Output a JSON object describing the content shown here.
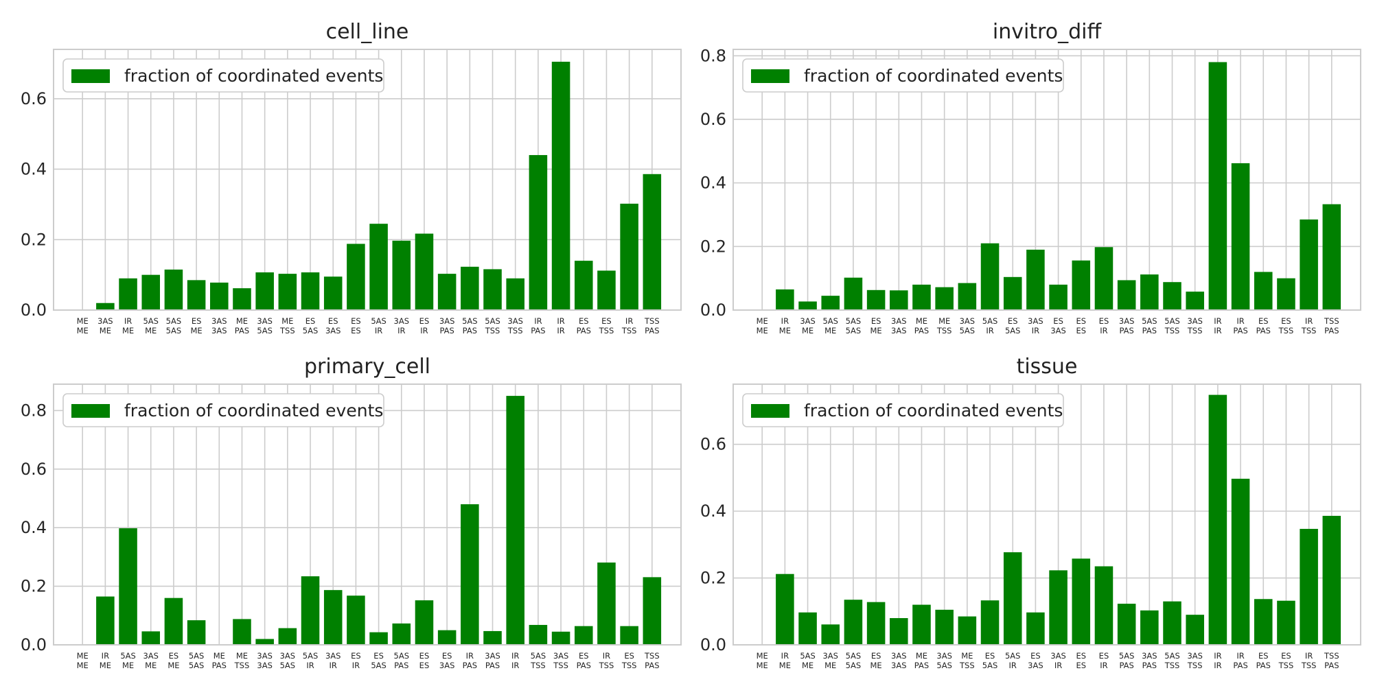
{
  "chart_data": [
    {
      "type": "bar",
      "title": "cell_line",
      "legend": "fraction of coordinated events",
      "legend_loc": "upper-left",
      "color": "#008000",
      "grid": true,
      "ylim": [
        0,
        0.74
      ],
      "yticks": [
        "0.0",
        "0.2",
        "0.4",
        "0.6"
      ],
      "categories": [
        "ME\nME",
        "3AS\nME",
        "IR\nME",
        "5AS\nME",
        "5AS\n5AS",
        "ES\nME",
        "3AS\n3AS",
        "ME\nPAS",
        "3AS\n5AS",
        "ME\nTSS",
        "ES\n5AS",
        "ES\n3AS",
        "ES\nES",
        "5AS\nIR",
        "3AS\nIR",
        "ES\nIR",
        "3AS\nPAS",
        "5AS\nPAS",
        "5AS\nTSS",
        "3AS\nTSS",
        "IR\nPAS",
        "IR\nIR",
        "ES\nPAS",
        "ES\nTSS",
        "IR\nTSS",
        "TSS\nPAS"
      ],
      "values": [
        0.0,
        0.02,
        0.09,
        0.1,
        0.115,
        0.085,
        0.078,
        0.062,
        0.107,
        0.103,
        0.107,
        0.095,
        0.188,
        0.245,
        0.197,
        0.217,
        0.103,
        0.123,
        0.116,
        0.09,
        0.44,
        0.705,
        0.14,
        0.112,
        0.302,
        0.386
      ]
    },
    {
      "type": "bar",
      "title": "invitro_diff",
      "legend": "fraction of coordinated events",
      "legend_loc": "upper-left",
      "color": "#008000",
      "grid": true,
      "ylim": [
        0,
        0.82
      ],
      "yticks": [
        "0.0",
        "0.2",
        "0.4",
        "0.6",
        "0.8"
      ],
      "categories": [
        "ME\nME",
        "IR\nME",
        "3AS\nME",
        "5AS\nME",
        "5AS\n5AS",
        "ES\nME",
        "3AS\n3AS",
        "ME\nPAS",
        "ME\nTSS",
        "3AS\n5AS",
        "5AS\nIR",
        "ES\n5AS",
        "3AS\nIR",
        "ES\n3AS",
        "ES\nES",
        "ES\nIR",
        "3AS\nPAS",
        "5AS\nPAS",
        "5AS\nTSS",
        "3AS\nTSS",
        "IR\nIR",
        "IR\nPAS",
        "ES\nPAS",
        "ES\nTSS",
        "IR\nTSS",
        "TSS\nPAS"
      ],
      "values": [
        0.0,
        0.065,
        0.027,
        0.045,
        0.102,
        0.063,
        0.062,
        0.08,
        0.072,
        0.085,
        0.21,
        0.104,
        0.19,
        0.08,
        0.156,
        0.198,
        0.094,
        0.112,
        0.088,
        0.058,
        0.78,
        0.462,
        0.12,
        0.1,
        0.285,
        0.333
      ]
    },
    {
      "type": "bar",
      "title": "primary_cell",
      "legend": "fraction of coordinated events",
      "legend_loc": "upper-left",
      "color": "#008000",
      "grid": true,
      "ylim": [
        0,
        0.89
      ],
      "yticks": [
        "0.0",
        "0.2",
        "0.4",
        "0.6",
        "0.8"
      ],
      "categories": [
        "ME\nME",
        "IR\nME",
        "5AS\nME",
        "3AS\nME",
        "ES\nME",
        "5AS\n5AS",
        "ME\nPAS",
        "ME\nTSS",
        "3AS\n3AS",
        "3AS\n5AS",
        "5AS\nIR",
        "3AS\nIR",
        "ES\nIR",
        "ES\n5AS",
        "5AS\nPAS",
        "ES\nES",
        "ES\n3AS",
        "IR\nPAS",
        "3AS\nPAS",
        "IR\nIR",
        "5AS\nTSS",
        "3AS\nTSS",
        "ES\nPAS",
        "IR\nTSS",
        "ES\nTSS",
        "TSS\nPAS"
      ],
      "values": [
        0.0,
        0.165,
        0.398,
        0.046,
        0.16,
        0.084,
        0.0,
        0.088,
        0.02,
        0.057,
        0.234,
        0.187,
        0.168,
        0.043,
        0.073,
        0.152,
        0.05,
        0.48,
        0.047,
        0.85,
        0.068,
        0.045,
        0.064,
        0.281,
        0.064,
        0.231
      ]
    },
    {
      "type": "bar",
      "title": "tissue",
      "legend": "fraction of coordinated events",
      "legend_loc": "upper-left",
      "color": "#008000",
      "grid": true,
      "ylim": [
        0,
        0.78
      ],
      "yticks": [
        "0.0",
        "0.2",
        "0.4",
        "0.6"
      ],
      "categories": [
        "ME\nME",
        "IR\nME",
        "5AS\nME",
        "3AS\nME",
        "5AS\n5AS",
        "ES\nME",
        "3AS\n3AS",
        "ME\nPAS",
        "3AS\n5AS",
        "ME\nTSS",
        "ES\n5AS",
        "5AS\nIR",
        "ES\n3AS",
        "3AS\nIR",
        "ES\nES",
        "ES\nIR",
        "5AS\nPAS",
        "3AS\nPAS",
        "5AS\nTSS",
        "3AS\nTSS",
        "IR\nIR",
        "IR\nPAS",
        "ES\nPAS",
        "ES\nTSS",
        "IR\nTSS",
        "TSS\nPAS"
      ],
      "values": [
        0.0,
        0.212,
        0.097,
        0.061,
        0.135,
        0.128,
        0.08,
        0.12,
        0.105,
        0.085,
        0.133,
        0.277,
        0.097,
        0.223,
        0.258,
        0.235,
        0.123,
        0.103,
        0.13,
        0.09,
        0.748,
        0.497,
        0.137,
        0.132,
        0.347,
        0.386
      ]
    }
  ]
}
